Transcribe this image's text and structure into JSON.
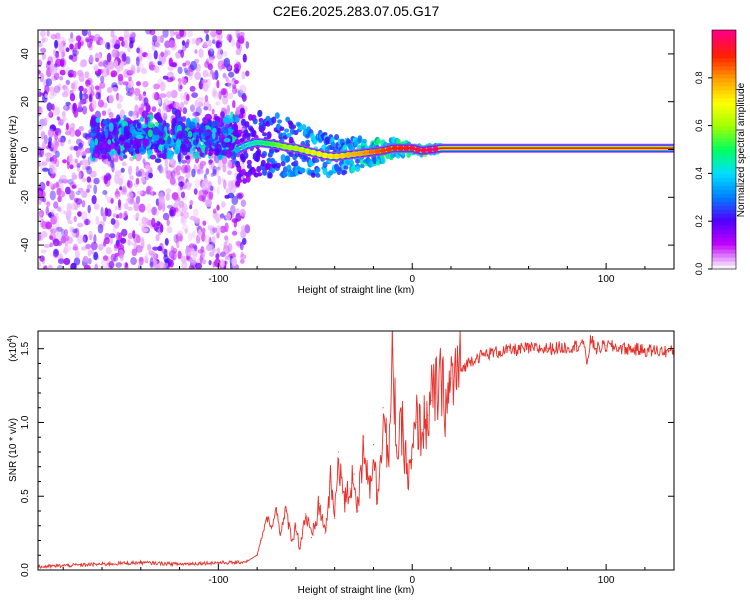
{
  "title": "C2E6.2025.283.07.05.G17",
  "chart_data": [
    {
      "type": "heatmap",
      "xlabel": "Height of straight line (km)",
      "ylabel": "Frequency (Hz)",
      "xlim": [
        -193,
        135
      ],
      "ylim": [
        -50,
        50
      ],
      "xticks": [
        -100,
        0,
        100
      ],
      "yticks": [
        -40,
        -20,
        0,
        20,
        40
      ],
      "grid": false,
      "colorbar": {
        "label": "Normalized spectral amplitude",
        "range": [
          0,
          1
        ],
        "ticks": [
          0.0,
          0.2,
          0.4,
          0.6,
          0.8
        ],
        "tick_labels": [
          "0.0",
          "0.2",
          "0.4",
          "0.6",
          "0.8"
        ],
        "colormap": [
          "#f8f0ff",
          "#c000ff",
          "#5000ff",
          "#0080ff",
          "#00e0ff",
          "#00ff60",
          "#a0ff00",
          "#ffff00",
          "#ffa000",
          "#ff2000",
          "#ff0080"
        ]
      },
      "ridge": {
        "x": [
          -90,
          -85,
          -80,
          -75,
          -70,
          -65,
          -60,
          -55,
          -50,
          -45,
          -40,
          -35,
          -30,
          -25,
          -20,
          -15,
          -10,
          -5,
          0,
          5,
          10,
          15,
          135
        ],
        "y": [
          0,
          2,
          3,
          2.5,
          2,
          1,
          0.5,
          -0.5,
          -1.5,
          -2.5,
          -3,
          -2.5,
          -2,
          -1.5,
          -1,
          -0.5,
          0.5,
          0.5,
          0.5,
          -0.5,
          0,
          0.5,
          0.5
        ],
        "amplitude": [
          0.35,
          0.4,
          0.45,
          0.5,
          0.55,
          0.6,
          0.62,
          0.65,
          0.68,
          0.7,
          0.72,
          0.75,
          0.78,
          0.8,
          0.85,
          0.88,
          0.9,
          0.92,
          0.95,
          0.97,
          1.0,
          1.0,
          1.0
        ]
      },
      "noise_region": {
        "x_range": [
          -193,
          -85
        ],
        "band_center_hz": 5,
        "band_x_range": [
          -165,
          -90
        ]
      }
    },
    {
      "type": "line",
      "xlabel": "Height of straight line (km)",
      "ylabel": "SNR (10 * v/v)",
      "scale_label": "(x10",
      "scale_exponent": "4",
      "xlim": [
        -193,
        135
      ],
      "ylim": [
        0,
        1.62
      ],
      "xticks": [
        -100,
        0,
        100
      ],
      "yticks": [
        0.0,
        0.5,
        1.0,
        1.5
      ],
      "ytick_labels": [
        "0.0",
        "0.5",
        "1.0",
        "1.5"
      ],
      "grid": false,
      "series": [
        {
          "name": "SNR",
          "color": "#e8302a",
          "x": [
            -193,
            -180,
            -160,
            -140,
            -120,
            -100,
            -90,
            -85,
            -80,
            -78,
            -75,
            -72,
            -70,
            -68,
            -65,
            -62,
            -60,
            -58,
            -55,
            -52,
            -50,
            -48,
            -45,
            -42,
            -40,
            -38,
            -35,
            -32,
            -30,
            -28,
            -25,
            -22,
            -20,
            -18,
            -15,
            -12,
            -10,
            -8,
            -5,
            -2,
            0,
            2,
            5,
            8,
            10,
            12,
            15,
            18,
            20,
            25,
            30,
            35,
            40,
            45,
            50,
            60,
            70,
            80,
            85,
            88,
            90,
            92,
            95,
            100,
            110,
            120,
            135
          ],
          "y": [
            0.02,
            0.03,
            0.04,
            0.05,
            0.04,
            0.05,
            0.05,
            0.06,
            0.1,
            0.2,
            0.35,
            0.3,
            0.42,
            0.25,
            0.4,
            0.2,
            0.3,
            0.15,
            0.38,
            0.22,
            0.3,
            0.45,
            0.25,
            0.6,
            0.35,
            0.8,
            0.45,
            0.55,
            0.65,
            0.4,
            0.9,
            0.55,
            0.85,
            0.45,
            1.1,
            0.7,
            1.5,
            0.8,
            0.95,
            0.6,
            0.75,
            1.0,
            0.95,
            1.05,
            1.15,
            1.2,
            1.25,
            1.1,
            1.3,
            1.35,
            1.42,
            1.45,
            1.47,
            1.48,
            1.49,
            1.5,
            1.5,
            1.51,
            1.52,
            1.55,
            1.4,
            1.56,
            1.5,
            1.52,
            1.5,
            1.49,
            1.48
          ]
        }
      ]
    }
  ]
}
